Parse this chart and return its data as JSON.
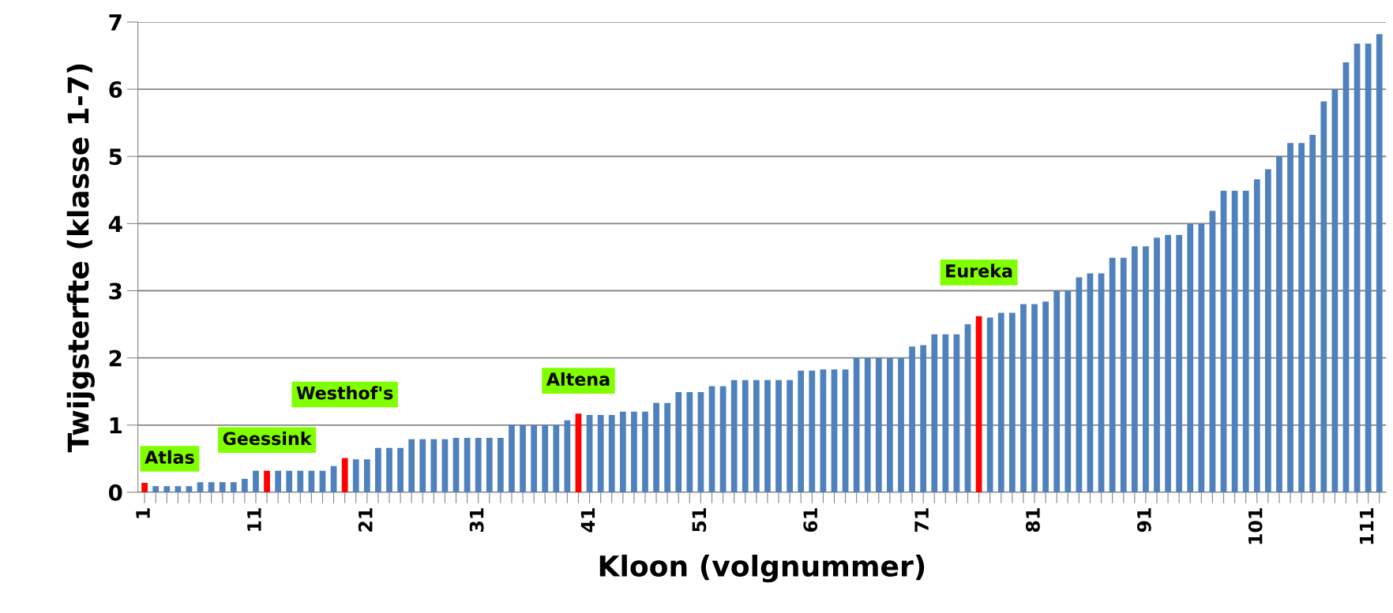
{
  "chart_data": {
    "type": "bar",
    "xlabel": "Kloon (volgnummer)",
    "ylabel": "Twijgsterfte (klasse 1-7)",
    "categories": [
      "1",
      null,
      null,
      null,
      null,
      null,
      null,
      null,
      null,
      null,
      "11",
      null,
      null,
      null,
      null,
      null,
      null,
      null,
      null,
      null,
      "21",
      null,
      null,
      null,
      null,
      null,
      null,
      null,
      null,
      null,
      "31",
      null,
      null,
      null,
      null,
      null,
      null,
      null,
      null,
      null,
      "41",
      null,
      null,
      null,
      null,
      null,
      null,
      null,
      null,
      null,
      "51",
      null,
      null,
      null,
      null,
      null,
      null,
      null,
      null,
      null,
      "61",
      null,
      null,
      null,
      null,
      null,
      null,
      null,
      null,
      null,
      "71",
      null,
      null,
      null,
      null,
      null,
      null,
      null,
      null,
      null,
      "81",
      null,
      null,
      null,
      null,
      null,
      null,
      null,
      null,
      null,
      "91",
      null,
      null,
      null,
      null,
      null,
      null,
      null,
      null,
      null,
      "101",
      null,
      null,
      null,
      null,
      null,
      null,
      null,
      null,
      null,
      "111",
      null
    ],
    "values": [
      0.14,
      0.09,
      0.09,
      0.09,
      0.09,
      0.15,
      0.15,
      0.15,
      0.15,
      0.2,
      0.32,
      0.32,
      0.32,
      0.32,
      0.32,
      0.32,
      0.32,
      0.39,
      0.51,
      0.49,
      0.49,
      0.66,
      0.66,
      0.66,
      0.79,
      0.79,
      0.79,
      0.79,
      0.81,
      0.81,
      0.81,
      0.81,
      0.81,
      1.0,
      1.0,
      1.0,
      1.0,
      1.0,
      1.07,
      1.17,
      1.15,
      1.15,
      1.15,
      1.2,
      1.2,
      1.2,
      1.33,
      1.33,
      1.49,
      1.49,
      1.49,
      1.58,
      1.58,
      1.67,
      1.67,
      1.67,
      1.67,
      1.67,
      1.67,
      1.81,
      1.81,
      1.83,
      1.83,
      1.83,
      2.0,
      2.0,
      2.0,
      2.0,
      2.0,
      2.17,
      2.19,
      2.35,
      2.35,
      2.35,
      2.5,
      2.62,
      2.6,
      2.67,
      2.67,
      2.8,
      2.8,
      2.84,
      3.0,
      3.0,
      3.2,
      3.26,
      3.26,
      3.49,
      3.49,
      3.66,
      3.66,
      3.79,
      3.83,
      3.83,
      4.0,
      4.0,
      4.19,
      4.49,
      4.49,
      4.49,
      4.66,
      4.81,
      5.0,
      5.2,
      5.2,
      5.32,
      5.82,
      6.0,
      6.4,
      6.68,
      6.68,
      6.82
    ],
    "colors": [
      "#ff0000",
      "#4f81bd",
      "#4f81bd",
      "#4f81bd",
      "#4f81bd",
      "#4f81bd",
      "#4f81bd",
      "#4f81bd",
      "#4f81bd",
      "#4f81bd",
      "#4f81bd",
      "#ff0000",
      "#4f81bd",
      "#4f81bd",
      "#4f81bd",
      "#4f81bd",
      "#4f81bd",
      "#4f81bd",
      "#ff0000",
      "#4f81bd",
      "#4f81bd",
      "#4f81bd",
      "#4f81bd",
      "#4f81bd",
      "#4f81bd",
      "#4f81bd",
      "#4f81bd",
      "#4f81bd",
      "#4f81bd",
      "#4f81bd",
      "#4f81bd",
      "#4f81bd",
      "#4f81bd",
      "#4f81bd",
      "#4f81bd",
      "#4f81bd",
      "#4f81bd",
      "#4f81bd",
      "#4f81bd",
      "#ff0000",
      "#4f81bd",
      "#4f81bd",
      "#4f81bd",
      "#4f81bd",
      "#4f81bd",
      "#4f81bd",
      "#4f81bd",
      "#4f81bd",
      "#4f81bd",
      "#4f81bd",
      "#4f81bd",
      "#4f81bd",
      "#4f81bd",
      "#4f81bd",
      "#4f81bd",
      "#4f81bd",
      "#4f81bd",
      "#4f81bd",
      "#4f81bd",
      "#4f81bd",
      "#4f81bd",
      "#4f81bd",
      "#4f81bd",
      "#4f81bd",
      "#4f81bd",
      "#4f81bd",
      "#4f81bd",
      "#4f81bd",
      "#4f81bd",
      "#4f81bd",
      "#4f81bd",
      "#4f81bd",
      "#4f81bd",
      "#4f81bd",
      "#4f81bd",
      "#ff0000",
      "#4f81bd",
      "#4f81bd",
      "#4f81bd",
      "#4f81bd",
      "#4f81bd",
      "#4f81bd",
      "#4f81bd",
      "#4f81bd",
      "#4f81bd",
      "#4f81bd",
      "#4f81bd",
      "#4f81bd",
      "#4f81bd",
      "#4f81bd",
      "#4f81bd",
      "#4f81bd",
      "#4f81bd",
      "#4f81bd",
      "#4f81bd",
      "#4f81bd",
      "#4f81bd",
      "#4f81bd",
      "#4f81bd",
      "#4f81bd",
      "#4f81bd",
      "#4f81bd",
      "#4f81bd",
      "#4f81bd",
      "#4f81bd",
      "#4f81bd",
      "#4f81bd",
      "#4f81bd",
      "#4f81bd",
      "#4f81bd",
      "#4f81bd",
      "#4f81bd"
    ],
    "annotations": [
      "Atlas",
      "Geessink",
      "Westhof's",
      "Altena",
      "Eureka"
    ],
    "ylim": [
      0,
      7
    ],
    "yticks": [
      0,
      1,
      2,
      3,
      4,
      5,
      6,
      7
    ],
    "grid": "y",
    "legend": false
  }
}
